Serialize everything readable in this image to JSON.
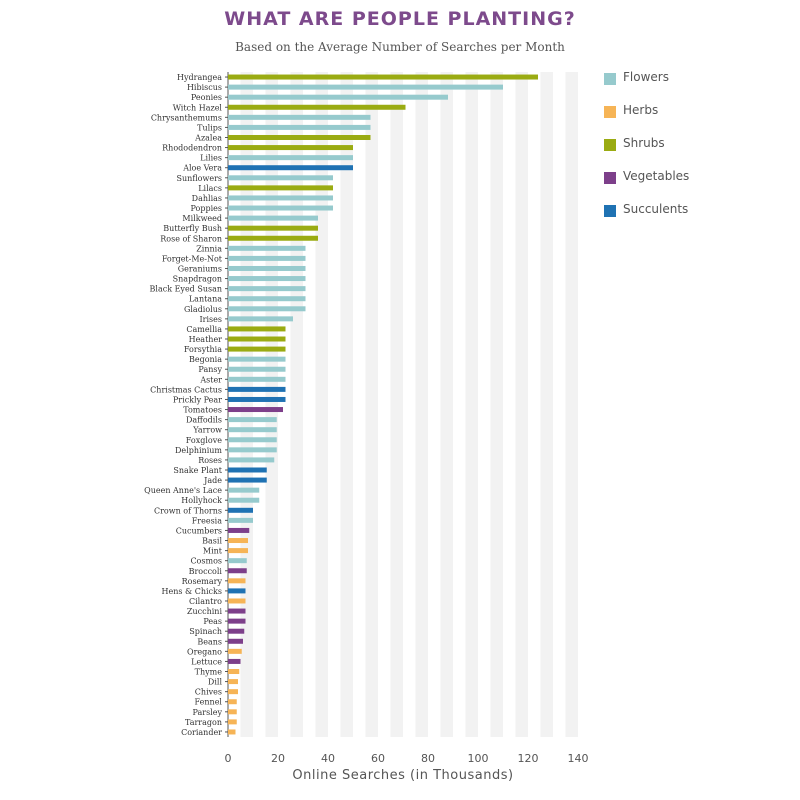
{
  "title": "WHAT ARE PEOPLE PLANTING?",
  "subtitle": "Based on the Average Number of Searches per Month",
  "legend": [
    {
      "label": "Flowers",
      "color": "#96cacd"
    },
    {
      "label": "Herbs",
      "color": "#f6b456"
    },
    {
      "label": "Shrubs",
      "color": "#9aab12"
    },
    {
      "label": "Vegetables",
      "color": "#7d3f8a"
    },
    {
      "label": "Succulents",
      "color": "#1f72b3"
    }
  ],
  "chart_data": {
    "type": "bar",
    "orientation": "horizontal",
    "title": "WHAT ARE PEOPLE PLANTING?",
    "subtitle": "Based on the Average Number of Searches per Month",
    "xlabel": "Online Searches (in Thousands)",
    "ylabel": "",
    "xlim": [
      0,
      140
    ],
    "xticks": [
      0,
      20,
      40,
      60,
      80,
      100,
      120,
      140
    ],
    "grid": "alternating vertical bands",
    "legend_position": "right",
    "categories": [
      "Hydrangea",
      "Hibiscus",
      "Peonies",
      "Witch Hazel",
      "Chrysanthemums",
      "Tulips",
      "Azalea",
      "Rhododendron",
      "Lilies",
      "Aloe Vera",
      "Sunflowers",
      "Lilacs",
      "Dahlias",
      "Poppies",
      "Milkweed",
      "Butterfly Bush",
      "Rose of Sharon",
      "Zinnia",
      "Forget-Me-Not",
      "Geraniums",
      "Snapdragon",
      "Black Eyed Susan",
      "Lantana",
      "Gladiolus",
      "Irises",
      "Camellia",
      "Heather",
      "Forsythia",
      "Begonia",
      "Pansy",
      "Aster",
      "Christmas Cactus",
      "Prickly Pear",
      "Tomatoes",
      "Daffodils",
      "Yarrow",
      "Foxglove",
      "Delphinium",
      "Roses",
      "Snake Plant",
      "Jade",
      "Queen Anne's Lace",
      "Hollyhock",
      "Crown of Thorns",
      "Freesia",
      "Cucumbers",
      "Basil",
      "Mint",
      "Cosmos",
      "Broccoli",
      "Rosemary",
      "Hens & Chicks",
      "Cilantro",
      "Zucchini",
      "Peas",
      "Spinach",
      "Beans",
      "Oregano",
      "Lettuce",
      "Thyme",
      "Dill",
      "Chives",
      "Fennel",
      "Parsley",
      "Tarragon",
      "Coriander"
    ],
    "values": [
      124,
      110,
      88,
      71,
      57,
      57,
      57,
      50,
      50,
      50,
      42,
      42,
      42,
      42,
      36,
      36,
      36,
      31,
      31,
      31,
      31,
      31,
      31,
      31,
      26,
      23,
      23,
      23,
      23,
      23,
      23,
      23,
      23,
      22,
      19.5,
      19.5,
      19.5,
      19.5,
      18.5,
      15.5,
      15.5,
      12.5,
      12.5,
      10,
      10,
      8.5,
      8,
      8,
      7.5,
      7.5,
      7,
      7,
      7,
      7,
      7,
      6.5,
      6,
      5.5,
      5,
      4.5,
      4,
      4,
      3.5,
      3.5,
      3.5,
      3
    ],
    "groups": [
      "Shrubs",
      "Flowers",
      "Flowers",
      "Shrubs",
      "Flowers",
      "Flowers",
      "Shrubs",
      "Shrubs",
      "Flowers",
      "Succulents",
      "Flowers",
      "Shrubs",
      "Flowers",
      "Flowers",
      "Flowers",
      "Shrubs",
      "Shrubs",
      "Flowers",
      "Flowers",
      "Flowers",
      "Flowers",
      "Flowers",
      "Flowers",
      "Flowers",
      "Flowers",
      "Shrubs",
      "Shrubs",
      "Shrubs",
      "Flowers",
      "Flowers",
      "Flowers",
      "Succulents",
      "Succulents",
      "Vegetables",
      "Flowers",
      "Flowers",
      "Flowers",
      "Flowers",
      "Flowers",
      "Succulents",
      "Succulents",
      "Flowers",
      "Flowers",
      "Succulents",
      "Flowers",
      "Vegetables",
      "Herbs",
      "Herbs",
      "Flowers",
      "Vegetables",
      "Herbs",
      "Succulents",
      "Herbs",
      "Vegetables",
      "Vegetables",
      "Vegetables",
      "Vegetables",
      "Herbs",
      "Vegetables",
      "Herbs",
      "Herbs",
      "Herbs",
      "Herbs",
      "Herbs",
      "Herbs",
      "Herbs"
    ]
  }
}
